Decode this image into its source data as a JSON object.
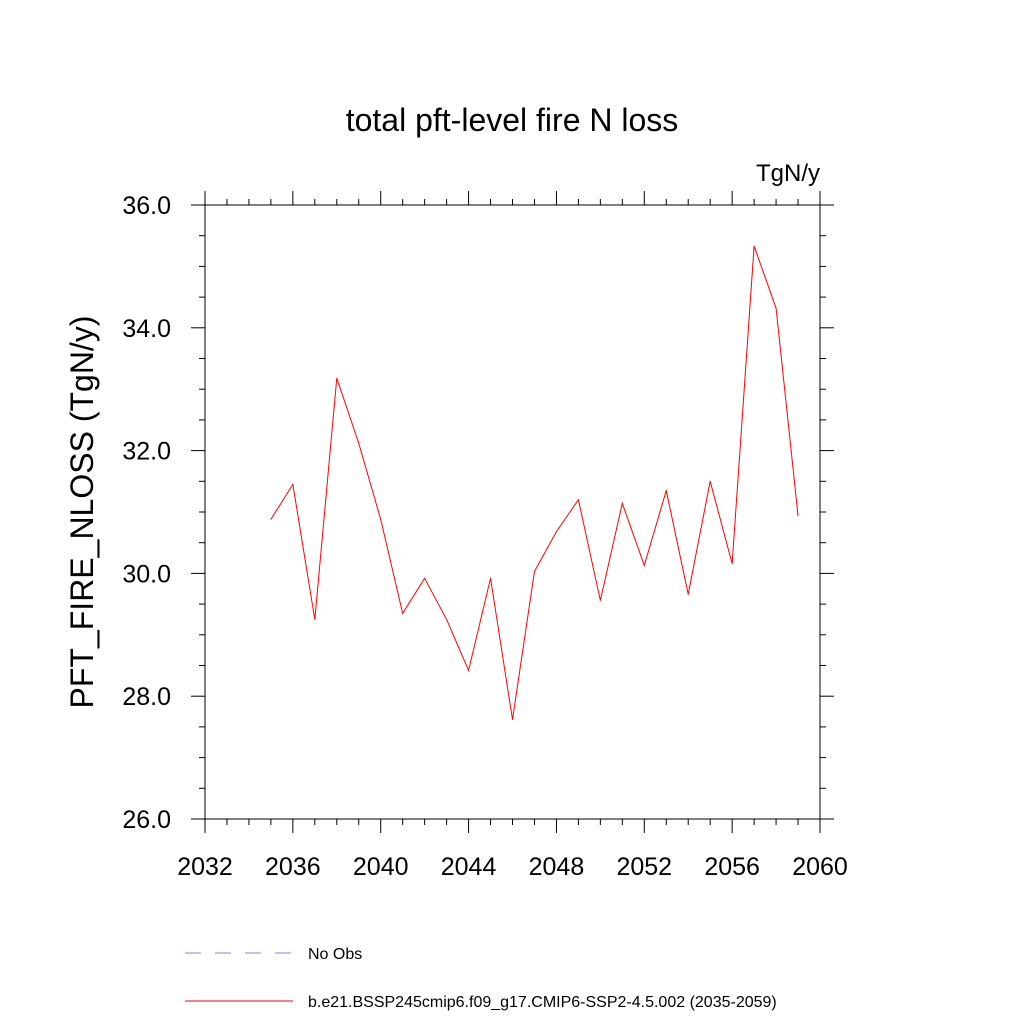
{
  "chart_data": {
    "type": "line",
    "title": "total pft-level fire N loss",
    "units_label": "TgN/y",
    "ylabel": "PFT_FIRE_NLOSS  (TgN/y)",
    "xlabel": "",
    "xlim": [
      2032,
      2060
    ],
    "ylim": [
      26.0,
      36.0
    ],
    "x_ticks": [
      "2032",
      "2036",
      "2040",
      "2044",
      "2048",
      "2052",
      "2056",
      "2060"
    ],
    "y_ticks": [
      "26.0",
      "28.0",
      "30.0",
      "32.0",
      "34.0",
      "36.0"
    ],
    "grid": false,
    "legend_position": "bottom",
    "series": [
      {
        "name": "b.e21.BSSP245cmip6.f09_g17.CMIP6-SSP2-4.5.002 (2035-2059)",
        "color": "#ff0000",
        "style": "solid",
        "x": [
          2035,
          2036,
          2037,
          2038,
          2039,
          2040,
          2041,
          2042,
          2043,
          2044,
          2045,
          2046,
          2047,
          2048,
          2049,
          2050,
          2051,
          2052,
          2053,
          2054,
          2055,
          2056,
          2057,
          2058,
          2059
        ],
        "values": [
          30.88,
          31.45,
          29.25,
          33.18,
          32.12,
          30.88,
          29.35,
          29.92,
          29.25,
          28.42,
          29.92,
          27.62,
          30.03,
          30.68,
          31.2,
          29.56,
          31.14,
          30.13,
          31.35,
          29.66,
          31.5,
          30.16,
          35.33,
          34.32,
          30.94
        ]
      },
      {
        "name": "No Obs",
        "color": "#8080ff",
        "style": "dashed",
        "x": [],
        "values": []
      }
    ]
  }
}
